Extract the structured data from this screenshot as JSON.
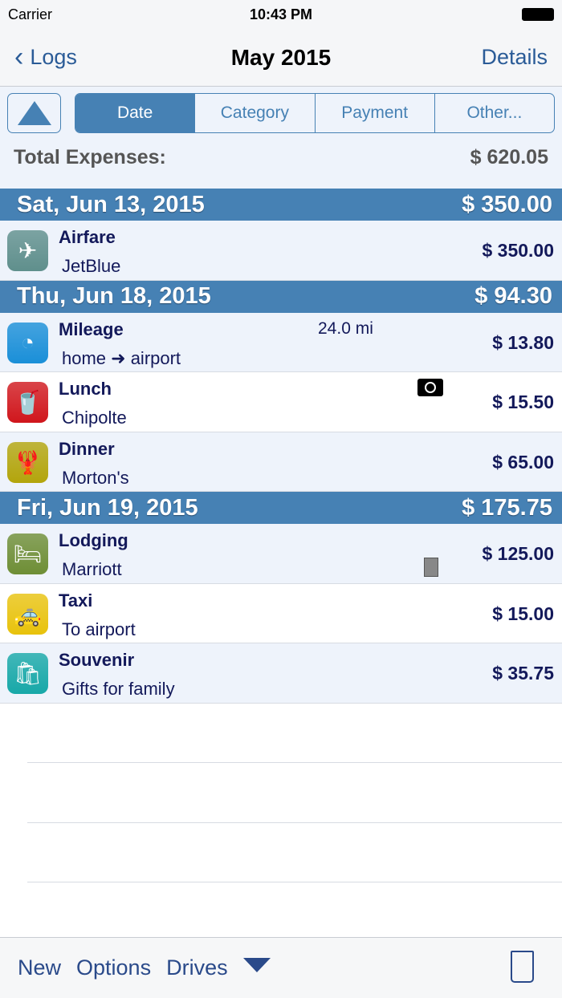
{
  "status": {
    "carrier": "Carrier",
    "time": "10:43 PM"
  },
  "nav": {
    "back": "Logs",
    "title": "May 2015",
    "details": "Details"
  },
  "segments": [
    "Date",
    "Category",
    "Payment",
    "Other..."
  ],
  "total": {
    "label": "Total Expenses:",
    "value": "$ 620.05"
  },
  "sections": [
    {
      "date": "Sat, Jun 13, 2015",
      "total": "$ 350.00",
      "rows": [
        {
          "category": "Airfare",
          "desc": "JetBlue",
          "amount": "$ 350.00",
          "icon": "airplane-icon",
          "color": "#5f8f8c",
          "glyph": "✈"
        }
      ]
    },
    {
      "date": "Thu, Jun 18, 2015",
      "total": "$ 94.30",
      "rows": [
        {
          "category": "Mileage",
          "desc": "home ➜ airport",
          "amount": "$ 13.80",
          "extra": "24.0 mi",
          "icon": "speedometer-icon",
          "color": "#1a8fd8",
          "glyph": "◔"
        },
        {
          "category": "Lunch",
          "desc": "Chipolte",
          "amount": "$ 15.50",
          "icon": "fast-food-icon",
          "color": "#d0161c",
          "glyph": "🥤",
          "attachment": "camera-icon"
        },
        {
          "category": "Dinner",
          "desc": "Morton's",
          "amount": "$ 65.00",
          "icon": "lobster-icon",
          "color": "#b3a50c",
          "glyph": "🦞"
        }
      ]
    },
    {
      "date": "Fri, Jun 19, 2015",
      "total": "$ 175.75",
      "rows": [
        {
          "category": "Lodging",
          "desc": "Marriott",
          "amount": "$ 125.00",
          "icon": "bed-icon",
          "color": "#6e8e35",
          "glyph": "🛏",
          "attachment": "document-icon"
        },
        {
          "category": "Taxi",
          "desc": "To airport",
          "amount": "$ 15.00",
          "icon": "taxi-icon",
          "color": "#e8c20c",
          "glyph": "🚕"
        },
        {
          "category": "Souvenir",
          "desc": "Gifts for family",
          "amount": "$ 35.75",
          "icon": "shopping-bag-icon",
          "color": "#17a8a8",
          "glyph": "🛍"
        }
      ]
    }
  ],
  "bottom": {
    "new": "New",
    "options": "Options",
    "drives": "Drives"
  }
}
